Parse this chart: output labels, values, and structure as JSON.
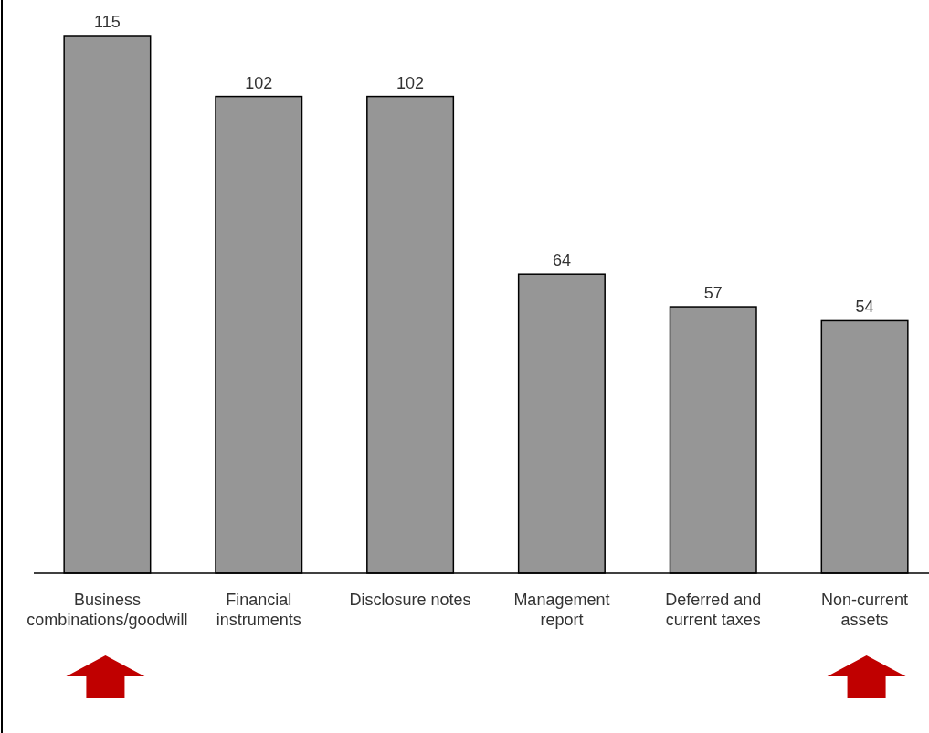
{
  "chart_data": {
    "type": "bar",
    "categories": [
      "Business combinations/goodwill",
      "Financial instruments",
      "Disclosure notes",
      "Management report",
      "Deferred and current taxes",
      "Non-current assets"
    ],
    "values": [
      115,
      102,
      102,
      64,
      57,
      54
    ],
    "color": "#969696",
    "data_labels": true
  }
}
